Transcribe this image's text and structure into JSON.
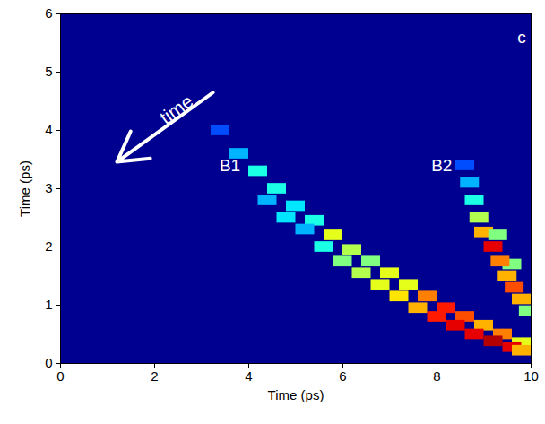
{
  "chart_data": {
    "type": "heatmap",
    "x_label": "Time (ps)",
    "y_label": "Time (ps)",
    "xlim": [
      0,
      10
    ],
    "ylim": [
      0,
      6
    ],
    "xticks": [
      0,
      2,
      4,
      6,
      8,
      10
    ],
    "yticks": [
      0,
      1,
      2,
      3,
      4,
      5,
      6
    ],
    "clim": [
      0,
      1
    ],
    "cell_width": 0.4,
    "cell_height": 0.18,
    "cells": [
      [
        3.4,
        4.0,
        0.2
      ],
      [
        3.8,
        3.6,
        0.3
      ],
      [
        4.2,
        3.3,
        0.4
      ],
      [
        4.6,
        3.0,
        0.4
      ],
      [
        5.0,
        2.7,
        0.35
      ],
      [
        5.4,
        2.45,
        0.4
      ],
      [
        5.8,
        2.2,
        0.6
      ],
      [
        6.2,
        1.95,
        0.55
      ],
      [
        6.6,
        1.75,
        0.5
      ],
      [
        7.0,
        1.55,
        0.6
      ],
      [
        7.4,
        1.35,
        0.6
      ],
      [
        7.8,
        1.15,
        0.75
      ],
      [
        8.2,
        0.95,
        0.85
      ],
      [
        8.6,
        0.8,
        0.8
      ],
      [
        9.0,
        0.65,
        0.7
      ],
      [
        9.4,
        0.5,
        0.75
      ],
      [
        9.8,
        0.35,
        0.6
      ],
      [
        4.4,
        2.8,
        0.3
      ],
      [
        4.8,
        2.5,
        0.35
      ],
      [
        5.2,
        2.3,
        0.3
      ],
      [
        5.6,
        2.0,
        0.4
      ],
      [
        6.0,
        1.75,
        0.5
      ],
      [
        6.4,
        1.55,
        0.55
      ],
      [
        6.8,
        1.35,
        0.6
      ],
      [
        7.2,
        1.15,
        0.65
      ],
      [
        7.6,
        0.95,
        0.7
      ],
      [
        8.0,
        0.8,
        0.85
      ],
      [
        8.4,
        0.65,
        0.9
      ],
      [
        8.8,
        0.5,
        0.9
      ],
      [
        9.2,
        0.38,
        0.95
      ],
      [
        9.6,
        0.28,
        0.9
      ],
      [
        9.8,
        0.22,
        0.7
      ],
      [
        8.6,
        3.4,
        0.2
      ],
      [
        8.7,
        3.1,
        0.3
      ],
      [
        8.8,
        2.8,
        0.4
      ],
      [
        8.9,
        2.5,
        0.55
      ],
      [
        9.0,
        2.25,
        0.7
      ],
      [
        9.3,
        2.2,
        0.5
      ],
      [
        9.6,
        1.7,
        0.5
      ],
      [
        9.2,
        2.0,
        0.9
      ],
      [
        9.35,
        1.75,
        0.75
      ],
      [
        9.5,
        1.5,
        0.7
      ],
      [
        9.65,
        1.3,
        0.8
      ],
      [
        9.8,
        1.1,
        0.7
      ],
      [
        9.95,
        0.9,
        0.5
      ]
    ],
    "annotations": [
      {
        "text": "B1",
        "x": 3.6,
        "y": 3.4
      },
      {
        "text": "B2",
        "x": 8.1,
        "y": 3.4
      },
      {
        "text": "c",
        "x": 9.8,
        "y": 5.6
      },
      {
        "text": "time",
        "x1": 3.24,
        "y1": 4.65,
        "x2": 1.2,
        "y2": 3.46
      }
    ]
  }
}
